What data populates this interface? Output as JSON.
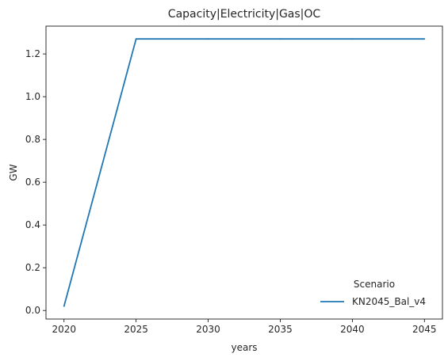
{
  "chart_data": {
    "type": "line",
    "title": "Capacity|Electricity|Gas|OC",
    "xlabel": "years",
    "ylabel": "GW",
    "x": [
      2020,
      2025,
      2030,
      2035,
      2040,
      2045
    ],
    "series": [
      {
        "name": "KN2045_Bal_v4",
        "color": "#1f77b4",
        "values": [
          0.02,
          1.27,
          1.27,
          1.27,
          1.27,
          1.27
        ]
      }
    ],
    "xlim": [
      2018.75,
      2046.25
    ],
    "ylim": [
      -0.04,
      1.33
    ],
    "xticks": [
      2020,
      2025,
      2030,
      2035,
      2040,
      2045
    ],
    "yticks": [
      0.0,
      0.2,
      0.4,
      0.6,
      0.8,
      1.0,
      1.2
    ],
    "ytick_labels": [
      "0.0",
      "0.2",
      "0.4",
      "0.6",
      "0.8",
      "1.0",
      "1.2"
    ],
    "legend": {
      "title": "Scenario",
      "placement": "lower-right"
    },
    "grid": false
  }
}
